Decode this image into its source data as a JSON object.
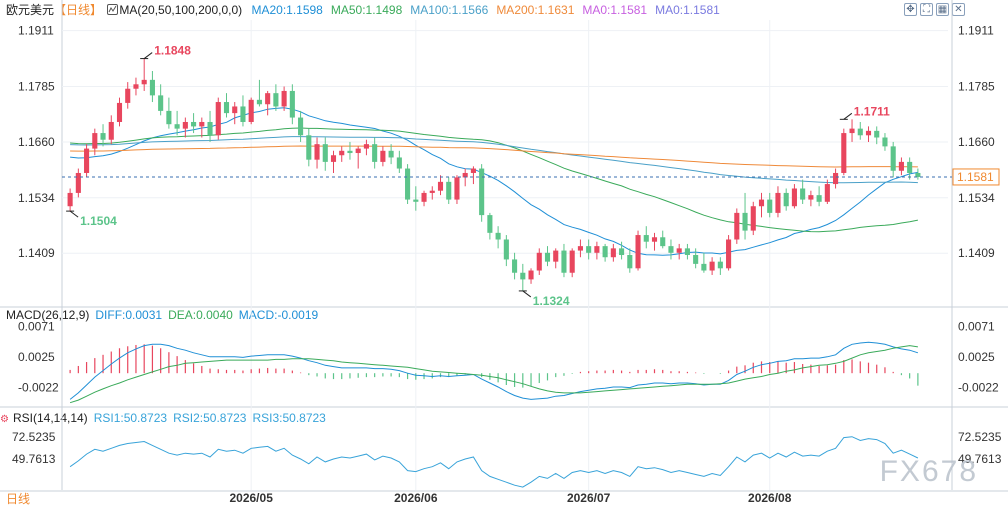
{
  "header": {
    "symbol": "欧元美元",
    "period_label": "【日线】",
    "ma_label": "MA(20,50,100,200,0,0)",
    "ma_values": [
      {
        "text": "MA20:1.1598",
        "color": "#1f8fd6"
      },
      {
        "text": "MA50:1.1498",
        "color": "#3aaa5a"
      },
      {
        "text": "MA100:1.1566",
        "color": "#4aa0c8"
      },
      {
        "text": "MA200:1.1631",
        "color": "#ef8a3a"
      },
      {
        "text": "MA0:1.1581",
        "color": "#c75fe0"
      },
      {
        "text": "MA0:1.1581",
        "color": "#7a7ae0"
      }
    ],
    "window_icons": [
      "move-icon",
      "fullscreen-icon",
      "grid-icon",
      "close-icon"
    ]
  },
  "macd_header": {
    "title": "MACD(26,12,9)",
    "diff": "DIFF:0.0031",
    "dea": "DEA:0.0040",
    "macd": "MACD:-0.0019"
  },
  "rsi_header": {
    "title": "RSI(14,14,14)",
    "rsi1": "RSI1:50.8723",
    "rsi2": "RSI2:50.8723",
    "rsi3": "RSI3:50.8723"
  },
  "footer": {
    "period": "日线",
    "watermark": "FX678"
  },
  "colors": {
    "up": "#e8465e",
    "down": "#5cc48a",
    "ma20": "#1f8fd6",
    "ma50": "#3aaa5a",
    "ma100": "#4aa0c8",
    "ma200": "#ef8a3a",
    "rsi": "#38a3d9",
    "last_price": "#f0892f"
  },
  "chart_data": [
    {
      "type": "candlestick",
      "x_labels": [
        "2026/05",
        "2026/06",
        "2026/07",
        "2026/08"
      ],
      "x_label_index": [
        22,
        42,
        63,
        85
      ],
      "y_ticks": [
        "1.1911",
        "1.1785",
        "1.1660",
        "1.1534",
        "1.1409"
      ],
      "ylim": [
        1.129,
        1.1935
      ],
      "high_label": "1.1848",
      "high_index": 9,
      "low_label": "1.1504",
      "low_index": 0,
      "low2_label": "1.1324",
      "low2_index": 55,
      "high2_label": "1.1711",
      "high2_index": 94,
      "last_price": "1.1581",
      "last_value": 1.1581,
      "ohlc": [
        [
          1.1515,
          1.1555,
          1.1504,
          1.1545
        ],
        [
          1.1545,
          1.16,
          1.1535,
          1.159
        ],
        [
          1.159,
          1.1655,
          1.158,
          1.1645
        ],
        [
          1.1645,
          1.169,
          1.163,
          1.168
        ],
        [
          1.168,
          1.17,
          1.165,
          1.1665
        ],
        [
          1.1665,
          1.172,
          1.1655,
          1.1705
        ],
        [
          1.1705,
          1.176,
          1.1695,
          1.1748
        ],
        [
          1.1748,
          1.1795,
          1.1735,
          1.178
        ],
        [
          1.178,
          1.1805,
          1.1765,
          1.179
        ],
        [
          1.179,
          1.1848,
          1.1775,
          1.18
        ],
        [
          1.18,
          1.182,
          1.175,
          1.1765
        ],
        [
          1.1765,
          1.179,
          1.172,
          1.173
        ],
        [
          1.173,
          1.176,
          1.169,
          1.17
        ],
        [
          1.17,
          1.173,
          1.1675,
          1.169
        ],
        [
          1.169,
          1.1715,
          1.167,
          1.1705
        ],
        [
          1.1705,
          1.1725,
          1.168,
          1.1695
        ],
        [
          1.1695,
          1.1715,
          1.167,
          1.1705
        ],
        [
          1.1705,
          1.173,
          1.166,
          1.1675
        ],
        [
          1.1675,
          1.176,
          1.1665,
          1.175
        ],
        [
          1.175,
          1.177,
          1.1715,
          1.1725
        ],
        [
          1.1725,
          1.175,
          1.17,
          1.174
        ],
        [
          1.174,
          1.1765,
          1.1695,
          1.1705
        ],
        [
          1.1705,
          1.176,
          1.17,
          1.1755
        ],
        [
          1.1755,
          1.18,
          1.174,
          1.1745
        ],
        [
          1.1745,
          1.1775,
          1.172,
          1.177
        ],
        [
          1.177,
          1.179,
          1.173,
          1.174
        ],
        [
          1.174,
          1.1785,
          1.173,
          1.1775
        ],
        [
          1.1775,
          1.179,
          1.17,
          1.1715
        ],
        [
          1.1715,
          1.173,
          1.166,
          1.1675
        ],
        [
          1.1675,
          1.169,
          1.1605,
          1.162
        ],
        [
          1.162,
          1.167,
          1.16,
          1.1655
        ],
        [
          1.1655,
          1.167,
          1.1595,
          1.1615
        ],
        [
          1.1615,
          1.164,
          1.159,
          1.163
        ],
        [
          1.163,
          1.165,
          1.1615,
          1.164
        ],
        [
          1.164,
          1.166,
          1.162,
          1.1635
        ],
        [
          1.1635,
          1.165,
          1.16,
          1.1645
        ],
        [
          1.1645,
          1.1665,
          1.163,
          1.1655
        ],
        [
          1.1655,
          1.167,
          1.16,
          1.1615
        ],
        [
          1.1615,
          1.165,
          1.1605,
          1.164
        ],
        [
          1.164,
          1.1655,
          1.161,
          1.1625
        ],
        [
          1.1625,
          1.164,
          1.159,
          1.16
        ],
        [
          1.16,
          1.161,
          1.152,
          1.153
        ],
        [
          1.153,
          1.156,
          1.1505,
          1.1525
        ],
        [
          1.1525,
          1.155,
          1.1515,
          1.1545
        ],
        [
          1.1545,
          1.156,
          1.153,
          1.155
        ],
        [
          1.155,
          1.1585,
          1.154,
          1.157
        ],
        [
          1.157,
          1.158,
          1.152,
          1.153
        ],
        [
          1.153,
          1.1585,
          1.152,
          1.158
        ],
        [
          1.158,
          1.16,
          1.156,
          1.159
        ],
        [
          1.159,
          1.1605,
          1.1565,
          1.16
        ],
        [
          1.16,
          1.161,
          1.148,
          1.1495
        ],
        [
          1.1495,
          1.15,
          1.144,
          1.1455
        ],
        [
          1.1455,
          1.147,
          1.142,
          1.144
        ],
        [
          1.144,
          1.145,
          1.138,
          1.1395
        ],
        [
          1.1395,
          1.141,
          1.135,
          1.1365
        ],
        [
          1.1365,
          1.1385,
          1.1324,
          1.135
        ],
        [
          1.135,
          1.1375,
          1.134,
          1.137
        ],
        [
          1.137,
          1.142,
          1.136,
          1.141
        ],
        [
          1.141,
          1.1425,
          1.138,
          1.139
        ],
        [
          1.139,
          1.142,
          1.1375,
          1.1415
        ],
        [
          1.1415,
          1.143,
          1.1355,
          1.1365
        ],
        [
          1.1365,
          1.142,
          1.1355,
          1.1415
        ],
        [
          1.1415,
          1.144,
          1.14,
          1.1425
        ],
        [
          1.1425,
          1.144,
          1.1395,
          1.141
        ],
        [
          1.141,
          1.1435,
          1.1395,
          1.1425
        ],
        [
          1.1425,
          1.143,
          1.139,
          1.14
        ],
        [
          1.14,
          1.143,
          1.139,
          1.142
        ],
        [
          1.142,
          1.1435,
          1.1395,
          1.1405
        ],
        [
          1.1405,
          1.142,
          1.1365,
          1.1375
        ],
        [
          1.1375,
          1.146,
          1.137,
          1.145
        ],
        [
          1.145,
          1.147,
          1.142,
          1.1435
        ],
        [
          1.1435,
          1.1455,
          1.1415,
          1.1445
        ],
        [
          1.1445,
          1.146,
          1.142,
          1.1425
        ],
        [
          1.1425,
          1.144,
          1.1395,
          1.141
        ],
        [
          1.141,
          1.143,
          1.1395,
          1.142
        ],
        [
          1.142,
          1.143,
          1.1395,
          1.1405
        ],
        [
          1.1405,
          1.142,
          1.1375,
          1.1385
        ],
        [
          1.1385,
          1.141,
          1.1365,
          1.137
        ],
        [
          1.137,
          1.14,
          1.136,
          1.139
        ],
        [
          1.139,
          1.14,
          1.136,
          1.1375
        ],
        [
          1.1375,
          1.145,
          1.137,
          1.144
        ],
        [
          1.144,
          1.151,
          1.143,
          1.15
        ],
        [
          1.15,
          1.1545,
          1.144,
          1.146
        ],
        [
          1.146,
          1.1525,
          1.145,
          1.1515
        ],
        [
          1.1515,
          1.1545,
          1.149,
          1.153
        ],
        [
          1.153,
          1.1545,
          1.149,
          1.15
        ],
        [
          1.15,
          1.156,
          1.149,
          1.1545
        ],
        [
          1.1545,
          1.1555,
          1.1505,
          1.1515
        ],
        [
          1.1515,
          1.1565,
          1.151,
          1.1555
        ],
        [
          1.1555,
          1.1575,
          1.152,
          1.153
        ],
        [
          1.153,
          1.155,
          1.1515,
          1.154
        ],
        [
          1.154,
          1.156,
          1.1515,
          1.1525
        ],
        [
          1.1525,
          1.1575,
          1.152,
          1.1565
        ],
        [
          1.1565,
          1.16,
          1.1555,
          1.159
        ],
        [
          1.159,
          1.169,
          1.1585,
          1.168
        ],
        [
          1.168,
          1.1711,
          1.166,
          1.169
        ],
        [
          1.169,
          1.1705,
          1.1665,
          1.1675
        ],
        [
          1.1675,
          1.1695,
          1.166,
          1.1685
        ],
        [
          1.1685,
          1.1695,
          1.1655,
          1.167
        ],
        [
          1.167,
          1.168,
          1.164,
          1.165
        ],
        [
          1.165,
          1.166,
          1.158,
          1.1595
        ],
        [
          1.1595,
          1.1625,
          1.1585,
          1.1615
        ],
        [
          1.1615,
          1.1625,
          1.1575,
          1.159
        ],
        [
          1.159,
          1.16,
          1.1575,
          1.1581
        ]
      ]
    },
    {
      "type": "bar+line",
      "name": "MACD",
      "y_ticks": [
        "0.0071",
        "0.0025",
        "-0.0022"
      ],
      "ylim": [
        -0.005,
        0.0078
      ],
      "macd_hist": [
        0.0005,
        0.0011,
        0.0017,
        0.0023,
        0.0028,
        0.0033,
        0.0038,
        0.0041,
        0.0043,
        0.0044,
        0.0042,
        0.0038,
        0.0032,
        0.0026,
        0.002,
        0.0015,
        0.0011,
        0.0007,
        0.0006,
        0.0005,
        0.0005,
        0.0004,
        0.0006,
        0.0007,
        0.0008,
        0.0007,
        0.0007,
        0.0004,
        0.0001,
        -0.0003,
        -0.0005,
        -0.0008,
        -0.0009,
        -0.0009,
        -0.0008,
        -0.0007,
        -0.0006,
        -0.0006,
        -0.0005,
        -0.0005,
        -0.0006,
        -0.0009,
        -0.001,
        -0.0009,
        -0.0008,
        -0.0006,
        -0.0006,
        -0.0004,
        -0.0002,
        0.0,
        -0.0006,
        -0.001,
        -0.0014,
        -0.0018,
        -0.0021,
        -0.0022,
        -0.002,
        -0.0015,
        -0.0011,
        -0.0006,
        -0.0004,
        -0.0001,
        0.0002,
        0.0003,
        0.0004,
        0.0004,
        0.0005,
        0.0004,
        0.0002,
        0.0005,
        0.0005,
        0.0006,
        0.0005,
        0.0003,
        0.0003,
        0.0002,
        0.0001,
        -0.0001,
        0.0,
        -0.0001,
        0.0004,
        0.001,
        0.0012,
        0.0016,
        0.0018,
        0.0017,
        0.0018,
        0.0016,
        0.0017,
        0.0014,
        0.0013,
        0.0011,
        0.0012,
        0.0013,
        0.002,
        0.0021,
        0.0018,
        0.0016,
        0.0013,
        0.0009,
        0.0002,
        -0.0003,
        -0.0008,
        -0.0019
      ],
      "diff": [
        -0.004,
        -0.003,
        -0.0018,
        -0.0006,
        0.0004,
        0.0014,
        0.0023,
        0.0031,
        0.0037,
        0.0042,
        0.0044,
        0.0044,
        0.0042,
        0.0038,
        0.0035,
        0.0031,
        0.0028,
        0.0025,
        0.0025,
        0.0025,
        0.0025,
        0.0024,
        0.0026,
        0.0027,
        0.0028,
        0.0028,
        0.0028,
        0.0026,
        0.0023,
        0.0019,
        0.0016,
        0.0012,
        0.001,
        0.0008,
        0.0008,
        0.0008,
        0.0008,
        0.0007,
        0.0007,
        0.0006,
        0.0004,
        0.0,
        -0.0003,
        -0.0004,
        -0.0005,
        -0.0004,
        -0.0005,
        -0.0004,
        -0.0003,
        -0.0002,
        -0.0009,
        -0.0015,
        -0.0021,
        -0.0028,
        -0.0034,
        -0.0038,
        -0.004,
        -0.0039,
        -0.0038,
        -0.0035,
        -0.0034,
        -0.0031,
        -0.0028,
        -0.0026,
        -0.0024,
        -0.0023,
        -0.0021,
        -0.0021,
        -0.0022,
        -0.0018,
        -0.0017,
        -0.0015,
        -0.0015,
        -0.0016,
        -0.0015,
        -0.0015,
        -0.0016,
        -0.0018,
        -0.0017,
        -0.0017,
        -0.0011,
        -0.0002,
        0.0003,
        0.0009,
        0.0013,
        0.0015,
        0.0018,
        0.0019,
        0.0022,
        0.0022,
        0.0023,
        0.0023,
        0.0025,
        0.0028,
        0.0038,
        0.0044,
        0.0046,
        0.0047,
        0.0046,
        0.0044,
        0.004,
        0.0037,
        0.0035,
        0.0031
      ],
      "dea": [
        -0.0045,
        -0.0041,
        -0.0035,
        -0.0029,
        -0.0024,
        -0.0019,
        -0.0015,
        -0.001,
        -0.0006,
        -0.0002,
        0.0002,
        0.0006,
        0.001,
        0.0012,
        0.0015,
        0.0016,
        0.0017,
        0.0018,
        0.0019,
        0.002,
        0.002,
        0.002,
        0.002,
        0.002,
        0.002,
        0.0021,
        0.0021,
        0.0022,
        0.0022,
        0.0022,
        0.0021,
        0.002,
        0.0019,
        0.0017,
        0.0016,
        0.0015,
        0.0014,
        0.0013,
        0.0012,
        0.0011,
        0.001,
        0.0009,
        0.0007,
        0.0005,
        0.0003,
        0.0002,
        0.0001,
        0.0,
        -0.0001,
        -0.0002,
        -0.0003,
        -0.0005,
        -0.0007,
        -0.001,
        -0.0013,
        -0.0016,
        -0.002,
        -0.0024,
        -0.0027,
        -0.0029,
        -0.003,
        -0.003,
        -0.003,
        -0.0029,
        -0.0028,
        -0.0027,
        -0.0026,
        -0.0025,
        -0.0024,
        -0.0023,
        -0.0022,
        -0.0021,
        -0.002,
        -0.0019,
        -0.0018,
        -0.0017,
        -0.0017,
        -0.0017,
        -0.0017,
        -0.0016,
        -0.0015,
        -0.0012,
        -0.0009,
        -0.0007,
        -0.0005,
        -0.0002,
        0.0,
        0.0003,
        0.0005,
        0.0008,
        0.001,
        0.0012,
        0.0013,
        0.0015,
        0.0018,
        0.0023,
        0.0028,
        0.0031,
        0.0033,
        0.0035,
        0.0038,
        0.004,
        0.0042,
        0.004
      ]
    },
    {
      "type": "line",
      "name": "RSI",
      "y_ticks": [
        "72.5235",
        "49.7613"
      ],
      "ylim": [
        18,
        84
      ],
      "rsi": [
        42,
        48,
        55,
        60,
        58,
        61,
        64,
        66,
        67,
        68,
        64,
        60,
        56,
        54,
        56,
        55,
        56,
        52,
        60,
        58,
        59,
        56,
        61,
        62,
        63,
        58,
        61,
        54,
        50,
        45,
        52,
        47,
        50,
        52,
        51,
        53,
        55,
        49,
        53,
        51,
        47,
        38,
        37,
        40,
        42,
        46,
        40,
        47,
        50,
        52,
        38,
        32,
        29,
        26,
        23,
        21,
        26,
        32,
        30,
        35,
        30,
        36,
        38,
        36,
        38,
        35,
        38,
        36,
        32,
        42,
        40,
        41,
        39,
        36,
        38,
        36,
        34,
        32,
        35,
        33,
        42,
        52,
        47,
        54,
        56,
        51,
        56,
        52,
        57,
        53,
        54,
        53,
        58,
        61,
        72,
        73,
        69,
        71,
        70,
        66,
        56,
        59,
        55,
        51
      ]
    }
  ]
}
